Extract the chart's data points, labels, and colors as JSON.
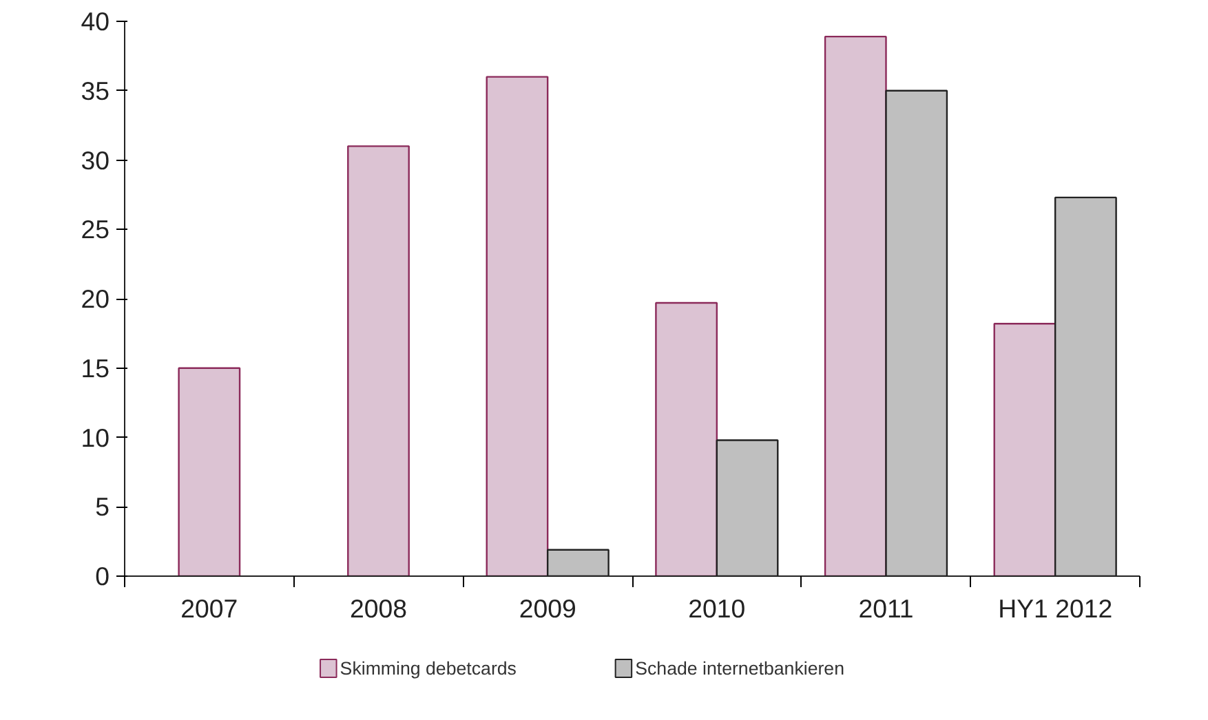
{
  "chart_data": {
    "type": "bar",
    "categories": [
      "2007",
      "2008",
      "2009",
      "2010",
      "2011",
      "HY1 2012"
    ],
    "series": [
      {
        "name": "Skimming debetcards",
        "color": "#dcc3d3",
        "values": [
          15,
          31,
          36,
          19.7,
          38.9,
          18.2
        ]
      },
      {
        "name": "Schade internetbankieren",
        "color": "#bfbfbf",
        "values": [
          null,
          null,
          1.9,
          9.8,
          35,
          27.3
        ]
      }
    ],
    "ylim": [
      0,
      40
    ],
    "yticks": [
      0,
      5,
      10,
      15,
      20,
      25,
      30,
      35,
      40
    ],
    "grid": false,
    "legend": "bottom"
  }
}
